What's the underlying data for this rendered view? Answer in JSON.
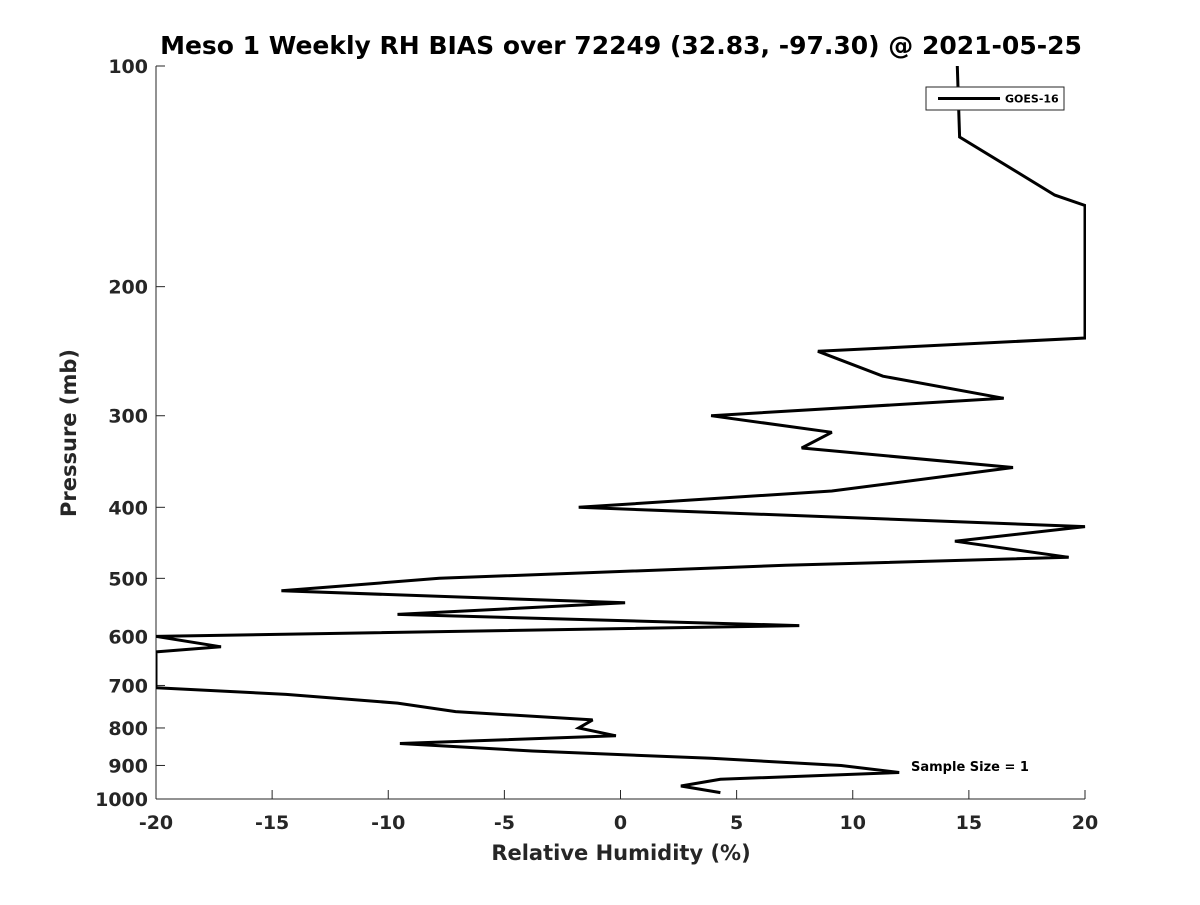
{
  "chart_data": {
    "type": "line",
    "title": "Meso 1 Weekly RH BIAS over 72249 (32.83, -97.30) @ 2021-05-25",
    "xlabel": "Relative Humidity (%)",
    "ylabel": "Pressure (mb)",
    "xlim": [
      -20,
      20
    ],
    "ylim": [
      100,
      1000
    ],
    "yscale": "log",
    "y_reversed": true,
    "grid": false,
    "legend_placement": "top-right",
    "x_ticks": [
      "-20",
      "-15",
      "-10",
      "-5",
      "0",
      "5",
      "10",
      "15",
      "20"
    ],
    "y_ticks": [
      "100",
      "200",
      "300",
      "400",
      "500",
      "600",
      "700",
      "800",
      "900",
      "1000"
    ],
    "annotation": "Sample Size = 1",
    "series": [
      {
        "name": "GOES-16",
        "color": "#000000",
        "points": [
          {
            "x": 14.5,
            "y": 100
          },
          {
            "x": 14.6,
            "y": 125
          },
          {
            "x": 18.7,
            "y": 150
          },
          {
            "x": 20,
            "y": 155
          },
          {
            "x": 20,
            "y": 235
          },
          {
            "x": 8.5,
            "y": 245
          },
          {
            "x": 11.3,
            "y": 265
          },
          {
            "x": 16.5,
            "y": 284
          },
          {
            "x": 3.9,
            "y": 300
          },
          {
            "x": 9.1,
            "y": 316
          },
          {
            "x": 7.8,
            "y": 332
          },
          {
            "x": 16.9,
            "y": 353
          },
          {
            "x": 9.1,
            "y": 380
          },
          {
            "x": -1.8,
            "y": 400
          },
          {
            "x": 20,
            "y": 425
          },
          {
            "x": 14.4,
            "y": 445
          },
          {
            "x": 19.3,
            "y": 468
          },
          {
            "x": 7.1,
            "y": 480
          },
          {
            "x": -7.8,
            "y": 500
          },
          {
            "x": -14.6,
            "y": 520
          },
          {
            "x": 0.2,
            "y": 540
          },
          {
            "x": -9.6,
            "y": 560
          },
          {
            "x": 7.7,
            "y": 580
          },
          {
            "x": -20,
            "y": 600
          },
          {
            "x": -17.2,
            "y": 620
          },
          {
            "x": -20,
            "y": 630
          },
          {
            "x": -20,
            "y": 705
          },
          {
            "x": -14.4,
            "y": 720
          },
          {
            "x": -9.6,
            "y": 740
          },
          {
            "x": -7.1,
            "y": 760
          },
          {
            "x": -1.2,
            "y": 780
          },
          {
            "x": -1.8,
            "y": 800
          },
          {
            "x": -0.2,
            "y": 820
          },
          {
            "x": -9.5,
            "y": 840
          },
          {
            "x": -3.8,
            "y": 860
          },
          {
            "x": 3.9,
            "y": 880
          },
          {
            "x": 9.5,
            "y": 900
          },
          {
            "x": 12.0,
            "y": 920
          },
          {
            "x": 4.3,
            "y": 940
          },
          {
            "x": 2.6,
            "y": 960
          },
          {
            "x": 4.3,
            "y": 980
          }
        ]
      }
    ]
  }
}
